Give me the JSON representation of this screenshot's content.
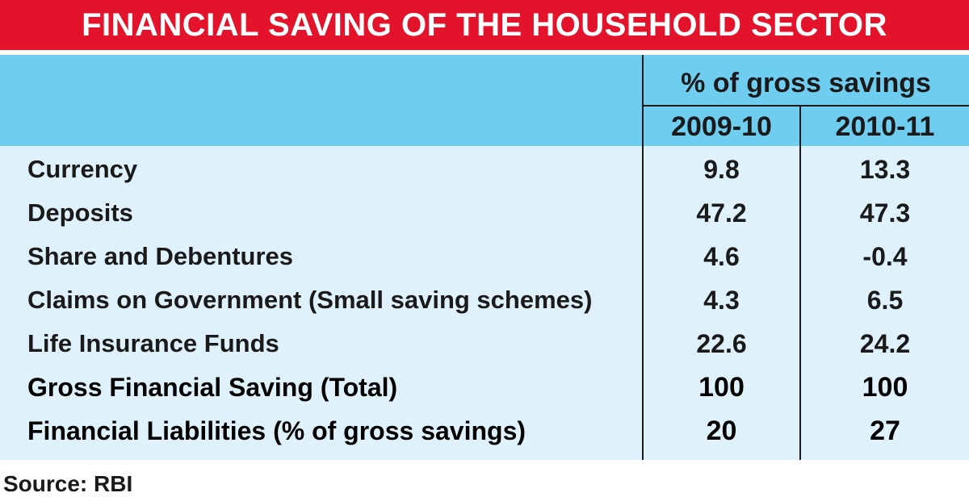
{
  "title": "FINANCIAL SAVING OF THE HOUSEHOLD SECTOR",
  "source": "Source: RBI",
  "colors": {
    "title_bg": "#e2132a",
    "header_bg": "#6fcdef",
    "body_bg": "#dff2fb"
  },
  "chart_data": {
    "type": "table",
    "title": "FINANCIAL SAVING OF THE HOUSEHOLD SECTOR",
    "column_group": "% of gross savings",
    "columns": [
      "2009-10",
      "2010-11"
    ],
    "rows": [
      {
        "label": "Currency",
        "values": [
          "9.8",
          "13.3"
        ]
      },
      {
        "label": "Deposits",
        "values": [
          "47.2",
          "47.3"
        ]
      },
      {
        "label": "Share and Debentures",
        "values": [
          "4.6",
          "-0.4"
        ]
      },
      {
        "label": "Claims on Government (Small saving schemes)",
        "values": [
          "4.3",
          "6.5"
        ]
      },
      {
        "label": "Life Insurance Funds",
        "values": [
          "22.6",
          "24.2"
        ]
      },
      {
        "label": "Gross Financial Saving (Total)",
        "values": [
          "100",
          "100"
        ]
      },
      {
        "label": "Financial Liabilities (% of gross savings)",
        "values": [
          "20",
          "27"
        ]
      }
    ],
    "source": "Source: RBI"
  }
}
